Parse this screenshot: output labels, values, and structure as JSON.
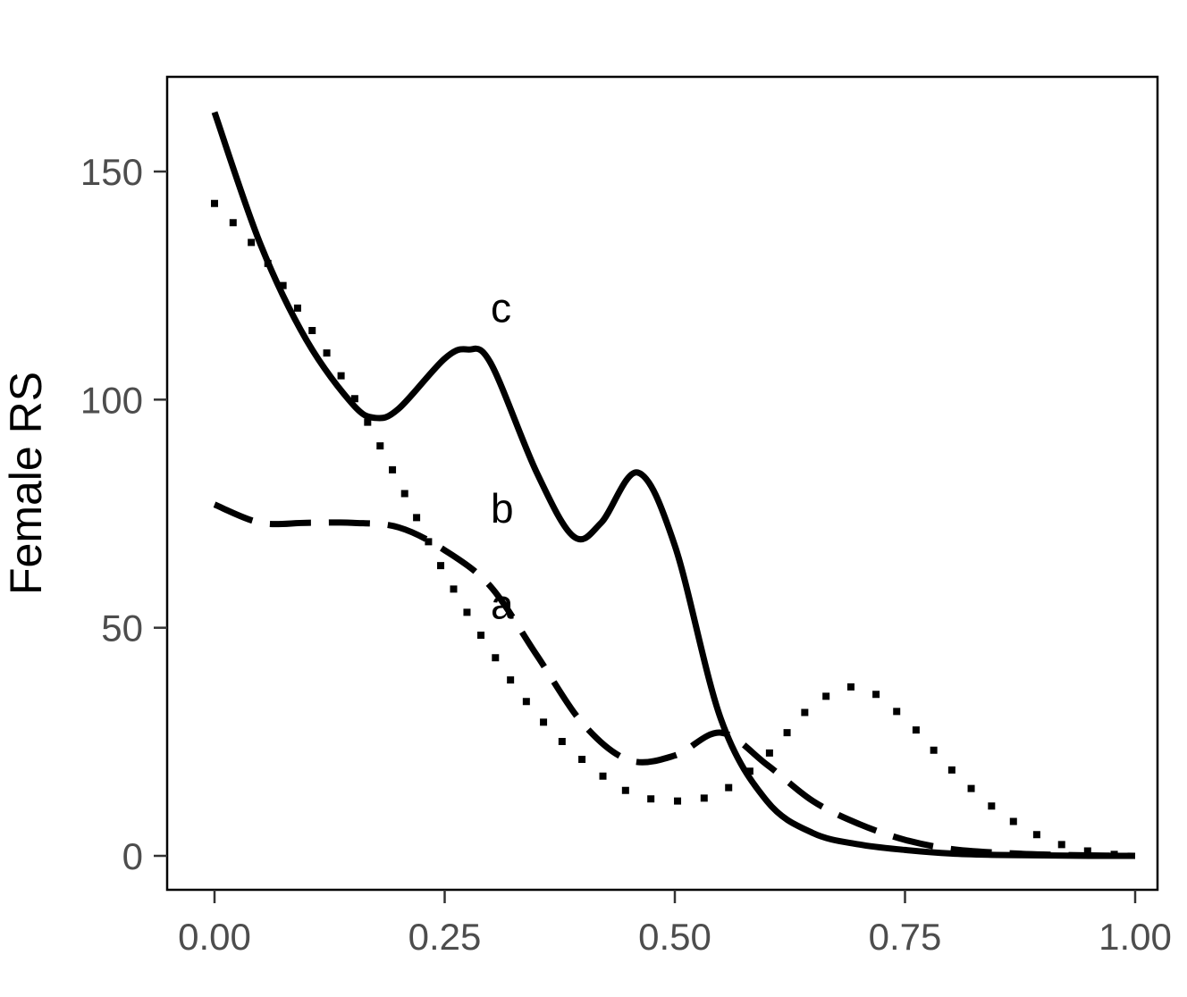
{
  "chart_data": {
    "type": "line",
    "title": "",
    "xlabel": "",
    "ylabel": "Female RS",
    "xlim": [
      0,
      1
    ],
    "ylim": [
      -8,
      170
    ],
    "x_ticks": [
      0,
      0.25,
      0.5,
      0.75,
      1.0
    ],
    "x_tick_labels": [
      "0.00",
      "0.25",
      "0.50",
      "0.75",
      "1.00"
    ],
    "y_ticks": [
      0,
      50,
      100,
      150
    ],
    "y_tick_labels": [
      "0",
      "50",
      "100",
      "150"
    ],
    "grid": false,
    "legend": "none",
    "series": [
      {
        "label": "a",
        "label_at": [
          0.3,
          52
        ],
        "style": "dotted",
        "x": [
          0.0,
          0.05,
          0.1,
          0.15,
          0.2,
          0.25,
          0.3,
          0.35,
          0.4,
          0.45,
          0.5,
          0.55,
          0.6,
          0.65,
          0.7,
          0.75,
          0.8,
          0.85,
          0.9,
          0.95,
          1.0
        ],
        "y": [
          143,
          132,
          117,
          101,
          82,
          62,
          45,
          31,
          21,
          14,
          12,
          14,
          22,
          33,
          37,
          30,
          19,
          10,
          4,
          1,
          0
        ]
      },
      {
        "label": "b",
        "label_at": [
          0.3,
          73
        ],
        "style": "dashed",
        "x": [
          0.0,
          0.05,
          0.1,
          0.15,
          0.2,
          0.25,
          0.3,
          0.35,
          0.4,
          0.45,
          0.5,
          0.55,
          0.6,
          0.65,
          0.7,
          0.75,
          0.8,
          0.85,
          0.9,
          0.95,
          1.0
        ],
        "y": [
          77,
          73,
          73,
          73,
          72,
          67,
          59,
          44,
          29,
          21,
          22,
          27,
          20,
          12,
          7,
          3.5,
          1.5,
          0.7,
          0.3,
          0.1,
          0
        ]
      },
      {
        "label": "c",
        "label_at": [
          0.3,
          117
        ],
        "style": "solid",
        "x": [
          0.0,
          0.05,
          0.1,
          0.15,
          0.175,
          0.2,
          0.25,
          0.275,
          0.3,
          0.35,
          0.39,
          0.42,
          0.46,
          0.5,
          0.55,
          0.6,
          0.65,
          0.7,
          0.75,
          0.8,
          0.85,
          0.9,
          0.95,
          1.0
        ],
        "y": [
          163,
          134,
          113,
          99,
          96,
          98,
          109,
          111,
          108,
          84,
          70,
          73,
          84,
          68,
          30,
          12,
          5,
          2.5,
          1.3,
          0.5,
          0.2,
          0.1,
          0,
          0
        ]
      }
    ]
  }
}
